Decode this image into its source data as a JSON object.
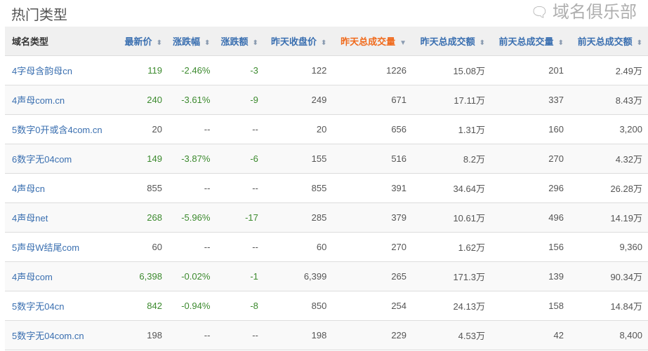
{
  "title": "热门类型",
  "columns": [
    {
      "label": "域名类型",
      "sort": ""
    },
    {
      "label": "最新价",
      "sort": "both"
    },
    {
      "label": "涨跌幅",
      "sort": "both"
    },
    {
      "label": "涨跌额",
      "sort": "both"
    },
    {
      "label": "昨天收盘价",
      "sort": "both"
    },
    {
      "label": "昨天总成交量",
      "sort": "desc",
      "active": true
    },
    {
      "label": "昨天总成交额",
      "sort": "both"
    },
    {
      "label": "前天总成交量",
      "sort": "both"
    },
    {
      "label": "前天总成交额",
      "sort": "both"
    }
  ],
  "rows": [
    [
      "4字母含韵母cn",
      "119",
      "-2.46%",
      "-3",
      "122",
      "1226",
      "15.08万",
      "201",
      "2.49万"
    ],
    [
      "4声母com.cn",
      "240",
      "-3.61%",
      "-9",
      "249",
      "671",
      "17.11万",
      "337",
      "8.43万"
    ],
    [
      "5数字0开或含4com.cn",
      "20",
      "--",
      "--",
      "20",
      "656",
      "1.31万",
      "160",
      "3,200"
    ],
    [
      "6数字无04com",
      "149",
      "-3.87%",
      "-6",
      "155",
      "516",
      "8.2万",
      "270",
      "4.32万"
    ],
    [
      "4声母cn",
      "855",
      "--",
      "--",
      "855",
      "391",
      "34.64万",
      "296",
      "26.28万"
    ],
    [
      "4声母net",
      "268",
      "-5.96%",
      "-17",
      "285",
      "379",
      "10.61万",
      "496",
      "14.19万"
    ],
    [
      "5声母W结尾com",
      "60",
      "--",
      "--",
      "60",
      "270",
      "1.62万",
      "156",
      "9,360"
    ],
    [
      "4声母com",
      "6,398",
      "-0.02%",
      "-1",
      "6,399",
      "265",
      "171.3万",
      "139",
      "90.34万"
    ],
    [
      "5数字无04cn",
      "842",
      "-0.94%",
      "-8",
      "850",
      "254",
      "24.13万",
      "158",
      "14.84万"
    ],
    [
      "5数字无04com.cn",
      "198",
      "--",
      "--",
      "198",
      "229",
      "4.53万",
      "42",
      "8,400"
    ]
  ],
  "colors": {
    "link": "#3a6fb0",
    "active_sort": "#f06a1c",
    "positive_change": "#3c8a2e"
  },
  "watermark": {
    "text": "域名俱乐部",
    "icon": "wechat-icon"
  }
}
